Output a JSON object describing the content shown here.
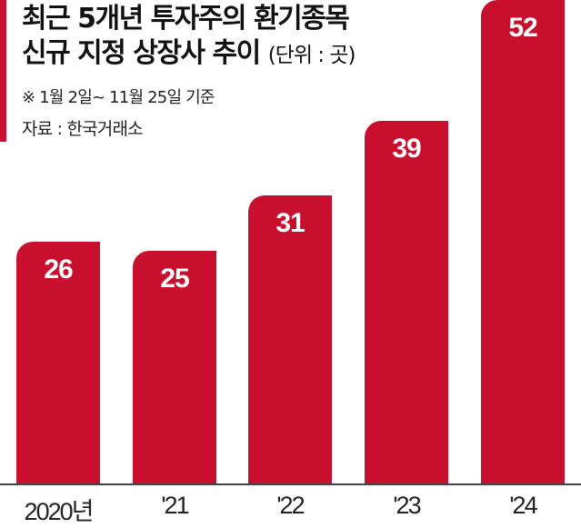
{
  "chart_data": {
    "type": "bar",
    "title": "최근 5개년 투자주의 환기종목 신규 지정 상장사 추이",
    "unit": "(단위 : 곳)",
    "note": "※ 1월 2일~ 11월 25일 기준",
    "source": "자료 : 한국거래소",
    "categories": [
      "2020년",
      "'21",
      "'22",
      "'23",
      "'24"
    ],
    "values": [
      26,
      25,
      31,
      39,
      52
    ],
    "value_labels": [
      "26",
      "25",
      "31",
      "39",
      "52"
    ],
    "xlabel": "",
    "ylabel": "",
    "grid": false,
    "legend": "none",
    "bar_color": "#c8102e"
  },
  "header": {
    "title_line1": "최근 5개년 투자주의 환기종목",
    "title_line2": "신규 지정 상장사 추이",
    "unit": "(단위 : 곳)",
    "note": "※ 1월 2일~ 11월 25일 기준",
    "source": "자료 : 한국거래소"
  }
}
